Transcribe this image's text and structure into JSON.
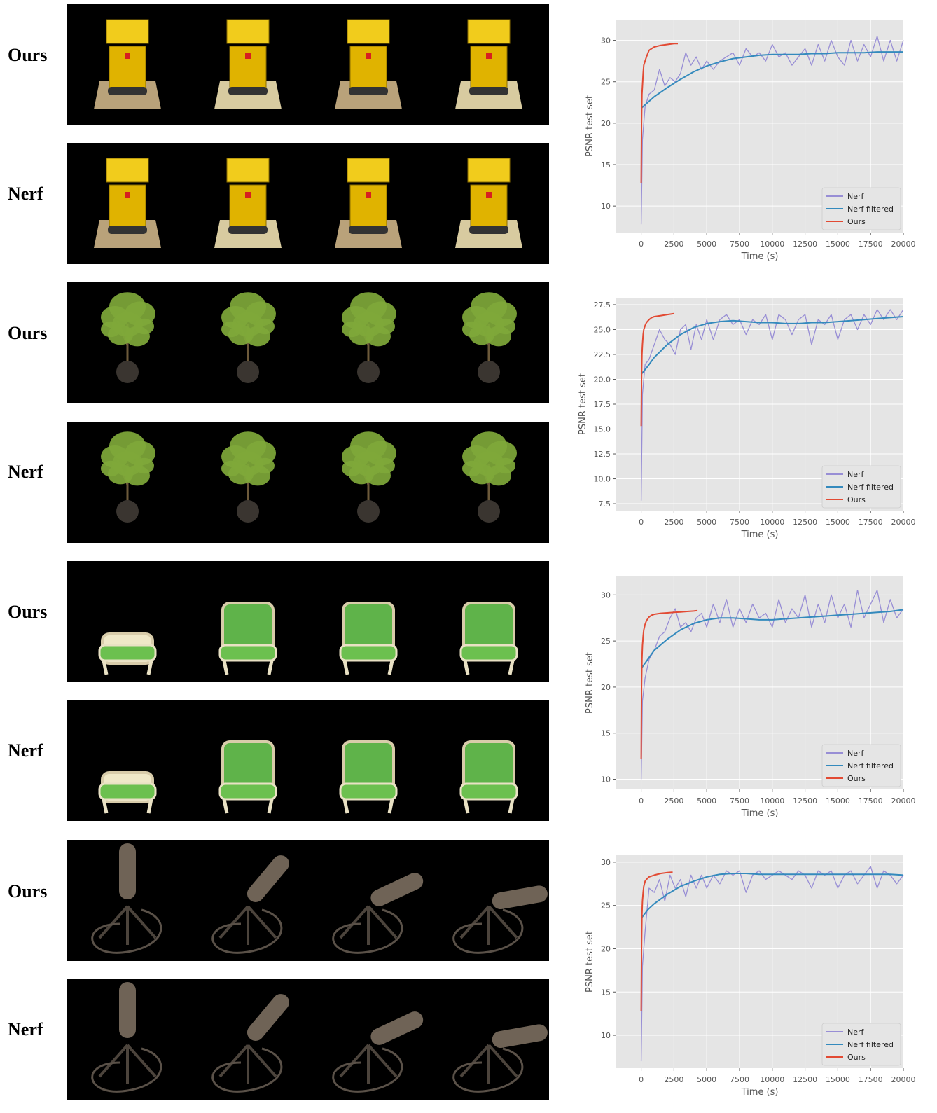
{
  "labels": {
    "ours": "Ours",
    "nerf": "Nerf"
  },
  "scenes": [
    {
      "id": "lego",
      "object": "lego bulldozer rendering"
    },
    {
      "id": "ficus",
      "object": "potted plant rendering"
    },
    {
      "id": "chair",
      "object": "green armchair rendering"
    },
    {
      "id": "mic",
      "object": "microphone on stand rendering"
    }
  ],
  "colors": {
    "nerf": "#988ED5",
    "nerf_filtered": "#348ABD",
    "ours": "#E24A33",
    "plot_bg": "#E5E5E5",
    "grid": "#FFFFFF"
  },
  "chart_data": [
    {
      "type": "line",
      "xlabel": "Time (s)",
      "ylabel": "PSNR test set",
      "xlim": [
        -1900,
        20000
      ],
      "ylim": [
        6.8,
        32.5
      ],
      "xticks": [
        0,
        2500,
        5000,
        7500,
        10000,
        12500,
        15000,
        17500,
        20000
      ],
      "yticks": [
        10,
        15,
        20,
        25,
        30
      ],
      "grid": true,
      "legend": "lower-right",
      "series": [
        {
          "name": "Nerf",
          "x": [
            0,
            100,
            300,
            600,
            1000,
            1400,
            1800,
            2200,
            2600,
            3000,
            3400,
            3800,
            4200,
            4600,
            5000,
            5500,
            6000,
            6500,
            7000,
            7500,
            8000,
            8500,
            9000,
            9500,
            10000,
            10500,
            11000,
            11500,
            12000,
            12500,
            13000,
            13500,
            14000,
            14500,
            15000,
            15500,
            16000,
            16500,
            17000,
            17500,
            18000,
            18500,
            19000,
            19500,
            20000
          ],
          "y": [
            7.8,
            18.0,
            22.0,
            23.5,
            24.0,
            26.5,
            24.5,
            25.5,
            25.0,
            26.0,
            28.5,
            27.0,
            28.0,
            26.5,
            27.5,
            26.5,
            27.5,
            28.0,
            28.5,
            27.0,
            29.0,
            28.0,
            28.5,
            27.5,
            29.5,
            28.0,
            28.5,
            27.0,
            28.0,
            29.0,
            27.0,
            29.5,
            27.5,
            30.0,
            28.0,
            27.0,
            30.0,
            27.5,
            29.5,
            28.0,
            30.5,
            27.5,
            30.0,
            27.5,
            30.0
          ]
        },
        {
          "name": "Nerf filtered",
          "x": [
            0,
            500,
            1000,
            2000,
            3000,
            4000,
            5000,
            6000,
            7000,
            8000,
            9000,
            10000,
            11000,
            12000,
            13000,
            14000,
            15000,
            16000,
            17000,
            18000,
            19000,
            20000
          ],
          "y": [
            21.8,
            22.5,
            23.2,
            24.3,
            25.3,
            26.2,
            26.9,
            27.4,
            27.8,
            28.0,
            28.2,
            28.3,
            28.3,
            28.3,
            28.4,
            28.4,
            28.5,
            28.5,
            28.5,
            28.6,
            28.6,
            28.6
          ]
        },
        {
          "name": "Ours",
          "x": [
            0,
            30,
            60,
            100,
            150,
            200,
            300,
            400,
            600,
            800,
            1000,
            1500,
            2000,
            2500,
            2800
          ],
          "y": [
            12.8,
            20.0,
            23.5,
            24.5,
            26.0,
            27.0,
            27.5,
            28.0,
            28.8,
            29.0,
            29.2,
            29.4,
            29.5,
            29.6,
            29.6
          ]
        }
      ]
    },
    {
      "type": "line",
      "xlabel": "Time (s)",
      "ylabel": "PSNR test set",
      "xlim": [
        -1900,
        20000
      ],
      "ylim": [
        6.8,
        28.2
      ],
      "xticks": [
        0,
        2500,
        5000,
        7500,
        10000,
        12500,
        15000,
        17500,
        20000
      ],
      "yticks": [
        7.5,
        10.0,
        12.5,
        15.0,
        17.5,
        20.0,
        22.5,
        25.0,
        27.5
      ],
      "grid": true,
      "legend": "lower-right",
      "series": [
        {
          "name": "Nerf",
          "x": [
            0,
            100,
            300,
            600,
            1000,
            1400,
            1800,
            2200,
            2600,
            3000,
            3400,
            3800,
            4200,
            4600,
            5000,
            5500,
            6000,
            6500,
            7000,
            7500,
            8000,
            8500,
            9000,
            9500,
            10000,
            10500,
            11000,
            11500,
            12000,
            12500,
            13000,
            13500,
            14000,
            14500,
            15000,
            15500,
            16000,
            16500,
            17000,
            17500,
            18000,
            18500,
            19000,
            19500,
            20000
          ],
          "y": [
            7.8,
            18.5,
            21.5,
            22.0,
            23.5,
            25.0,
            24.0,
            23.5,
            22.5,
            25.0,
            25.5,
            23.0,
            25.5,
            24.0,
            26.0,
            24.0,
            26.0,
            26.5,
            25.5,
            26.0,
            24.5,
            26.0,
            25.5,
            26.5,
            24.0,
            26.5,
            26.0,
            24.5,
            26.0,
            26.5,
            23.5,
            26.0,
            25.5,
            26.5,
            24.0,
            26.0,
            26.5,
            25.0,
            26.5,
            25.5,
            27.0,
            26.0,
            27.0,
            26.0,
            27.0
          ]
        },
        {
          "name": "Nerf filtered",
          "x": [
            0,
            500,
            1000,
            2000,
            3000,
            4000,
            5000,
            6000,
            7000,
            8000,
            9000,
            10000,
            11000,
            12000,
            13000,
            14000,
            15000,
            16000,
            17000,
            18000,
            19000,
            20000
          ],
          "y": [
            20.5,
            21.3,
            22.2,
            23.5,
            24.5,
            25.2,
            25.6,
            25.8,
            25.9,
            25.8,
            25.7,
            25.7,
            25.6,
            25.6,
            25.7,
            25.7,
            25.8,
            25.9,
            26.0,
            26.1,
            26.2,
            26.3
          ]
        },
        {
          "name": "Ours",
          "x": [
            0,
            30,
            60,
            100,
            150,
            200,
            300,
            400,
            600,
            800,
            1000,
            1500,
            2000,
            2500
          ],
          "y": [
            15.3,
            20.0,
            22.5,
            23.5,
            24.5,
            25.0,
            25.4,
            25.7,
            26.0,
            26.2,
            26.3,
            26.4,
            26.5,
            26.6
          ]
        }
      ]
    },
    {
      "type": "line",
      "xlabel": "Time (s)",
      "ylabel": "PSNR test set",
      "xlim": [
        -1900,
        20000
      ],
      "ylim": [
        8.9,
        32.0
      ],
      "xticks": [
        0,
        2500,
        5000,
        7500,
        10000,
        12500,
        15000,
        17500,
        20000
      ],
      "yticks": [
        10,
        15,
        20,
        25,
        30
      ],
      "grid": true,
      "legend": "lower-right",
      "series": [
        {
          "name": "Nerf",
          "x": [
            0,
            100,
            300,
            600,
            1000,
            1400,
            1800,
            2200,
            2600,
            3000,
            3400,
            3800,
            4200,
            4600,
            5000,
            5500,
            6000,
            6500,
            7000,
            7500,
            8000,
            8500,
            9000,
            9500,
            10000,
            10500,
            11000,
            11500,
            12000,
            12500,
            13000,
            13500,
            14000,
            14500,
            15000,
            15500,
            16000,
            16500,
            17000,
            17500,
            18000,
            18500,
            19000,
            19500,
            20000
          ],
          "y": [
            10.0,
            18.5,
            21.0,
            23.0,
            24.0,
            25.5,
            26.0,
            27.5,
            28.5,
            26.5,
            27.0,
            26.0,
            27.5,
            28.0,
            26.5,
            29.0,
            27.0,
            29.5,
            26.5,
            28.5,
            27.0,
            29.0,
            27.5,
            28.0,
            26.5,
            29.5,
            27.0,
            28.5,
            27.5,
            30.0,
            26.5,
            29.0,
            27.0,
            30.0,
            27.5,
            29.0,
            26.5,
            30.5,
            27.5,
            29.0,
            30.5,
            27.0,
            29.5,
            27.5,
            28.5
          ]
        },
        {
          "name": "Nerf filtered",
          "x": [
            0,
            500,
            1000,
            2000,
            3000,
            4000,
            5000,
            6000,
            7000,
            8000,
            9000,
            10000,
            11000,
            12000,
            13000,
            14000,
            15000,
            16000,
            17000,
            18000,
            19000,
            20000
          ],
          "y": [
            22.0,
            23.0,
            24.0,
            25.2,
            26.2,
            26.9,
            27.3,
            27.5,
            27.5,
            27.4,
            27.3,
            27.3,
            27.4,
            27.5,
            27.6,
            27.7,
            27.8,
            27.9,
            28.0,
            28.1,
            28.2,
            28.4
          ]
        },
        {
          "name": "Ours",
          "x": [
            0,
            30,
            60,
            100,
            150,
            200,
            300,
            400,
            600,
            800,
            1000,
            1500,
            2000,
            2500,
            3000,
            3500,
            4000,
            4300
          ],
          "y": [
            12.2,
            20.0,
            23.0,
            24.5,
            25.5,
            26.2,
            26.8,
            27.2,
            27.6,
            27.8,
            27.9,
            28.0,
            28.05,
            28.1,
            28.15,
            28.2,
            28.25,
            28.3
          ]
        }
      ]
    },
    {
      "type": "line",
      "xlabel": "Time (s)",
      "ylabel": "PSNR test set",
      "xlim": [
        -1900,
        20000
      ],
      "ylim": [
        6.2,
        30.8
      ],
      "xticks": [
        0,
        2500,
        5000,
        7500,
        10000,
        12500,
        15000,
        17500,
        20000
      ],
      "yticks": [
        10,
        15,
        20,
        25,
        30
      ],
      "grid": true,
      "legend": "lower-right",
      "series": [
        {
          "name": "Nerf",
          "x": [
            0,
            100,
            300,
            600,
            1000,
            1400,
            1800,
            2200,
            2600,
            3000,
            3400,
            3800,
            4200,
            4600,
            5000,
            5500,
            6000,
            6500,
            7000,
            7500,
            8000,
            8500,
            9000,
            9500,
            10000,
            10500,
            11000,
            11500,
            12000,
            12500,
            13000,
            13500,
            14000,
            14500,
            15000,
            15500,
            16000,
            16500,
            17000,
            17500,
            18000,
            18500,
            19000,
            19500,
            20000
          ],
          "y": [
            7.0,
            18.0,
            22.0,
            27.0,
            26.5,
            28.0,
            25.5,
            28.5,
            27.0,
            28.0,
            26.0,
            28.5,
            27.0,
            28.5,
            27.0,
            28.5,
            27.5,
            29.0,
            28.5,
            29.0,
            26.5,
            28.5,
            29.0,
            28.0,
            28.5,
            29.0,
            28.5,
            28.0,
            29.0,
            28.5,
            27.0,
            29.0,
            28.5,
            29.0,
            27.0,
            28.5,
            29.0,
            27.5,
            28.5,
            29.5,
            27.0,
            29.0,
            28.5,
            27.5,
            28.5
          ]
        },
        {
          "name": "Nerf filtered",
          "x": [
            0,
            500,
            1000,
            2000,
            3000,
            4000,
            5000,
            6000,
            7000,
            8000,
            9000,
            10000,
            11000,
            12000,
            13000,
            14000,
            15000,
            16000,
            17000,
            18000,
            19000,
            20000
          ],
          "y": [
            23.5,
            24.5,
            25.2,
            26.3,
            27.2,
            27.8,
            28.3,
            28.6,
            28.7,
            28.7,
            28.6,
            28.6,
            28.6,
            28.6,
            28.6,
            28.6,
            28.6,
            28.6,
            28.6,
            28.6,
            28.6,
            28.5
          ]
        },
        {
          "name": "Ours",
          "x": [
            0,
            30,
            60,
            100,
            150,
            200,
            300,
            400,
            600,
            800,
            1000,
            1500,
            2000,
            2400
          ],
          "y": [
            12.8,
            20.0,
            24.0,
            25.5,
            26.5,
            27.2,
            27.8,
            28.0,
            28.3,
            28.4,
            28.5,
            28.7,
            28.8,
            28.85
          ]
        }
      ]
    }
  ]
}
